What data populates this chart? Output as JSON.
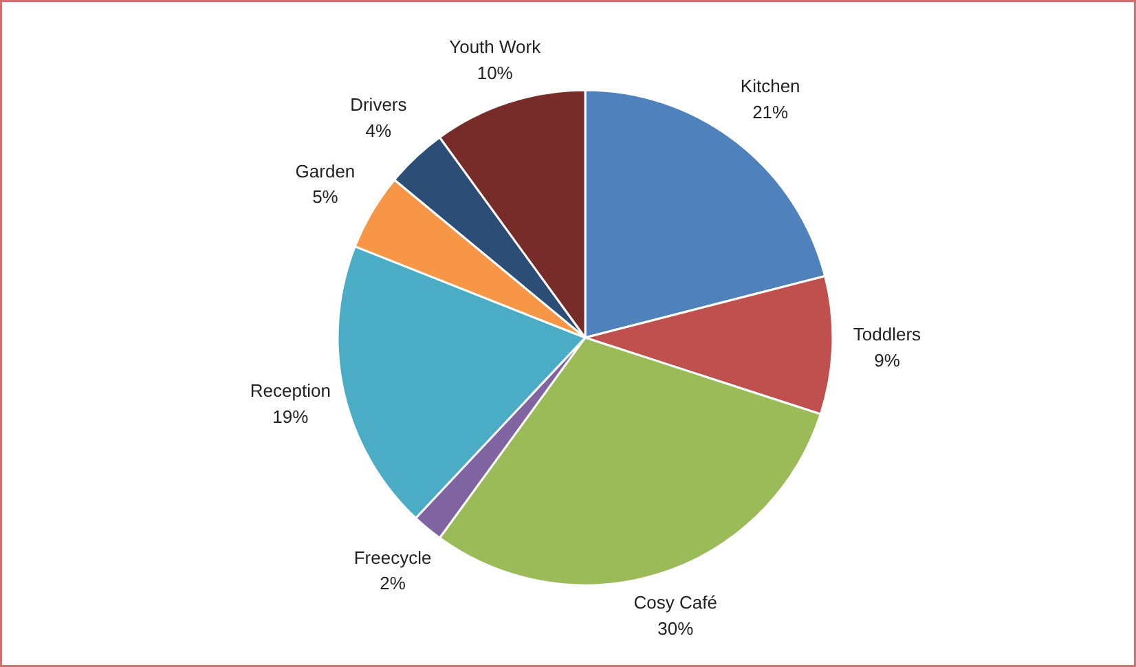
{
  "chart_data": {
    "type": "pie",
    "categories": [
      "Kitchen",
      "Toddlers",
      "Cosy Café",
      "Freecycle",
      "Reception",
      "Garden",
      "Drivers",
      "Youth Work"
    ],
    "values": [
      21,
      9,
      30,
      2,
      19,
      5,
      4,
      10
    ],
    "value_labels": [
      "21%",
      "9%",
      "30%",
      "2%",
      "19%",
      "5%",
      "4%",
      "10%"
    ],
    "colors": [
      "#4f81bd",
      "#c0504d",
      "#9bbb59",
      "#8064a2",
      "#4bacc6",
      "#f79646",
      "#2c4d75",
      "#772c2a"
    ],
    "legend": false
  }
}
